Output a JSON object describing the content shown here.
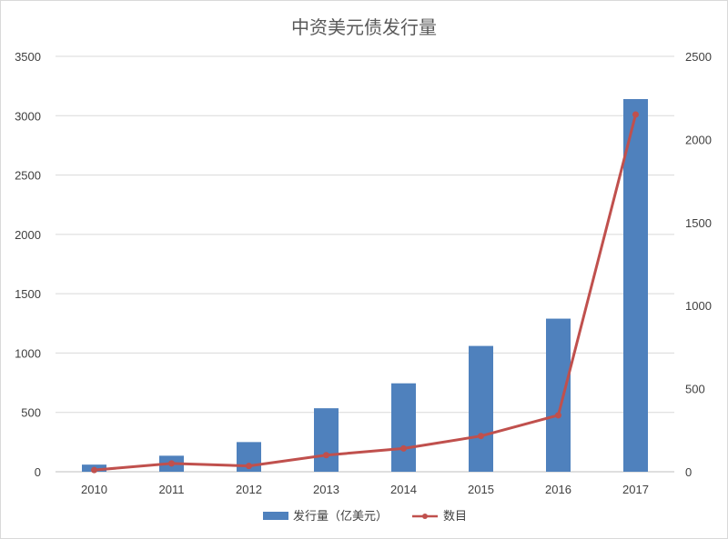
{
  "chart_data": {
    "type": "bar",
    "title": "中资美元债发行量",
    "categories": [
      "2010",
      "2011",
      "2012",
      "2013",
      "2014",
      "2015",
      "2016",
      "2017"
    ],
    "series": [
      {
        "name": "发行量（亿美元）",
        "type": "bar",
        "axis": "left",
        "color": "#4f81bd",
        "values": [
          60,
          135,
          250,
          535,
          745,
          1060,
          1290,
          3140
        ]
      },
      {
        "name": "数目",
        "type": "line",
        "axis": "right",
        "color": "#c0504d",
        "values": [
          10,
          50,
          35,
          100,
          140,
          215,
          340,
          2150
        ]
      }
    ],
    "y_left": {
      "min": 0,
      "max": 3500,
      "ticks": [
        "0",
        "500",
        "1000",
        "1500",
        "2000",
        "2500",
        "3000",
        "3500"
      ]
    },
    "y_right": {
      "min": 0,
      "max": 2500,
      "ticks": [
        "0",
        "500",
        "1000",
        "1500",
        "2000",
        "2500"
      ]
    },
    "grid": true,
    "legend": "bottom"
  }
}
